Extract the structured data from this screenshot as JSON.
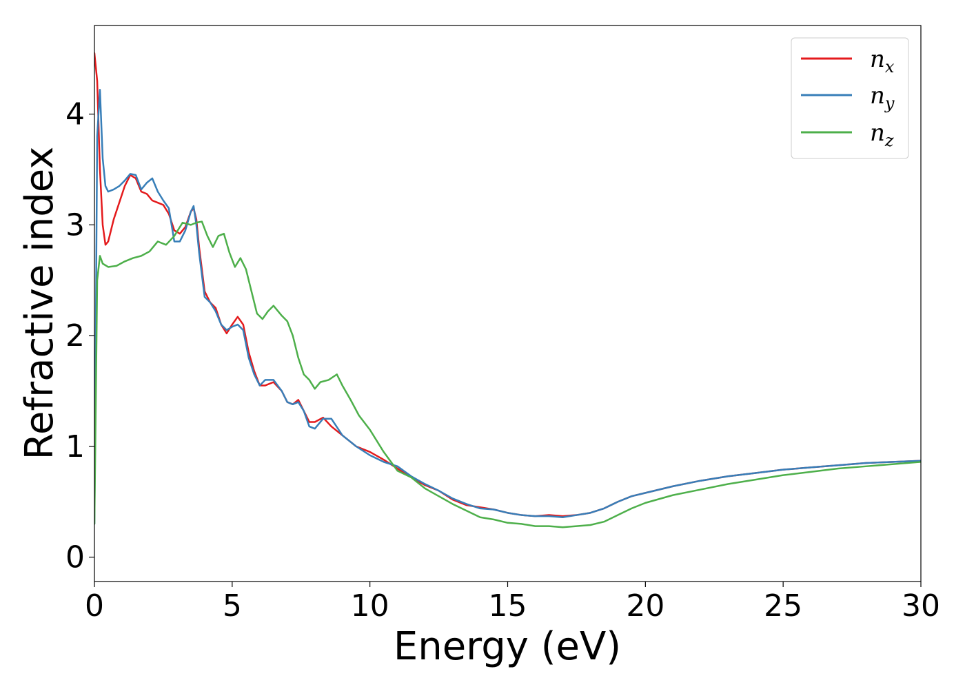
{
  "chart_data": {
    "type": "line",
    "xlabel": "Energy (eV)",
    "ylabel": "Refractive index",
    "xlim": [
      0,
      30
    ],
    "ylim": [
      -0.22,
      4.8
    ],
    "x_ticks": [
      0,
      5,
      10,
      15,
      20,
      25,
      30
    ],
    "y_ticks": [
      0,
      1,
      2,
      3,
      4
    ],
    "grid": false,
    "legend_position": "top-right",
    "series": [
      {
        "name": "n",
        "subscript": "x",
        "color": "#e41a1c",
        "x": [
          0,
          0.1,
          0.2,
          0.3,
          0.4,
          0.5,
          0.7,
          0.9,
          1.1,
          1.3,
          1.5,
          1.7,
          1.9,
          2.1,
          2.3,
          2.5,
          2.7,
          2.9,
          3.1,
          3.3,
          3.5,
          3.6,
          3.7,
          3.8,
          4.0,
          4.2,
          4.4,
          4.6,
          4.8,
          5.0,
          5.2,
          5.4,
          5.6,
          5.8,
          6.0,
          6.2,
          6.5,
          6.8,
          7.0,
          7.2,
          7.4,
          7.6,
          7.8,
          8.0,
          8.3,
          8.6,
          9.0,
          9.5,
          10.0,
          10.5,
          11.0,
          11.5,
          12.0,
          12.5,
          13.0,
          13.5,
          14.0,
          14.5,
          15.0,
          15.5,
          16.0,
          16.5,
          17.0,
          17.5,
          18.0,
          18.5,
          19.0,
          19.5,
          20.0,
          21.0,
          22.0,
          23.0,
          24.0,
          25.0,
          26.0,
          27.0,
          28.0,
          29.0,
          30.0
        ],
        "y": [
          4.55,
          4.3,
          3.5,
          3.0,
          2.82,
          2.85,
          3.05,
          3.2,
          3.35,
          3.45,
          3.42,
          3.3,
          3.28,
          3.22,
          3.2,
          3.18,
          3.1,
          2.95,
          2.92,
          2.98,
          3.12,
          3.15,
          3.05,
          2.8,
          2.4,
          2.3,
          2.25,
          2.1,
          2.02,
          2.1,
          2.17,
          2.1,
          1.85,
          1.68,
          1.55,
          1.55,
          1.58,
          1.5,
          1.4,
          1.38,
          1.42,
          1.32,
          1.22,
          1.22,
          1.26,
          1.18,
          1.1,
          1.0,
          0.95,
          0.88,
          0.8,
          0.72,
          0.65,
          0.6,
          0.52,
          0.47,
          0.45,
          0.43,
          0.4,
          0.38,
          0.37,
          0.38,
          0.37,
          0.38,
          0.4,
          0.44,
          0.5,
          0.55,
          0.58,
          0.64,
          0.69,
          0.73,
          0.76,
          0.79,
          0.81,
          0.83,
          0.85,
          0.86,
          0.87
        ]
      },
      {
        "name": "n",
        "subscript": "y",
        "color": "#377eb8",
        "x": [
          0,
          0.1,
          0.2,
          0.3,
          0.4,
          0.5,
          0.7,
          0.9,
          1.1,
          1.3,
          1.5,
          1.7,
          1.9,
          2.1,
          2.3,
          2.5,
          2.7,
          2.9,
          3.1,
          3.3,
          3.5,
          3.6,
          3.7,
          3.8,
          4.0,
          4.2,
          4.4,
          4.6,
          4.8,
          5.0,
          5.2,
          5.4,
          5.6,
          5.8,
          6.0,
          6.2,
          6.5,
          6.8,
          7.0,
          7.2,
          7.4,
          7.6,
          7.8,
          8.0,
          8.3,
          8.6,
          9.0,
          9.5,
          10.0,
          10.5,
          11.0,
          11.5,
          12.0,
          12.5,
          13.0,
          13.5,
          14.0,
          14.5,
          15.0,
          15.5,
          16.0,
          16.5,
          17.0,
          17.5,
          18.0,
          18.5,
          19.0,
          19.5,
          20.0,
          21.0,
          22.0,
          23.0,
          24.0,
          25.0,
          26.0,
          27.0,
          28.0,
          29.0,
          30.0
        ],
        "y": [
          0.3,
          3.8,
          4.22,
          3.6,
          3.35,
          3.3,
          3.32,
          3.35,
          3.4,
          3.46,
          3.45,
          3.32,
          3.38,
          3.42,
          3.3,
          3.22,
          3.15,
          2.85,
          2.85,
          2.95,
          3.12,
          3.17,
          3.0,
          2.75,
          2.35,
          2.3,
          2.22,
          2.1,
          2.05,
          2.08,
          2.1,
          2.05,
          1.8,
          1.65,
          1.55,
          1.6,
          1.6,
          1.5,
          1.4,
          1.38,
          1.4,
          1.32,
          1.18,
          1.16,
          1.25,
          1.25,
          1.1,
          1.0,
          0.92,
          0.86,
          0.82,
          0.73,
          0.66,
          0.6,
          0.53,
          0.48,
          0.44,
          0.43,
          0.4,
          0.38,
          0.37,
          0.37,
          0.36,
          0.38,
          0.4,
          0.44,
          0.5,
          0.55,
          0.58,
          0.64,
          0.69,
          0.73,
          0.76,
          0.79,
          0.81,
          0.83,
          0.85,
          0.86,
          0.87
        ]
      },
      {
        "name": "n",
        "subscript": "z",
        "color": "#4daf4a",
        "x": [
          0,
          0.1,
          0.2,
          0.3,
          0.5,
          0.8,
          1.1,
          1.4,
          1.7,
          2.0,
          2.3,
          2.6,
          2.9,
          3.2,
          3.5,
          3.7,
          3.9,
          4.1,
          4.3,
          4.5,
          4.7,
          4.9,
          5.1,
          5.3,
          5.5,
          5.7,
          5.9,
          6.1,
          6.3,
          6.5,
          6.8,
          7.0,
          7.2,
          7.4,
          7.6,
          7.8,
          8.0,
          8.2,
          8.5,
          8.8,
          9.0,
          9.3,
          9.6,
          10.0,
          10.5,
          11.0,
          11.5,
          12.0,
          12.5,
          13.0,
          13.5,
          14.0,
          14.5,
          15.0,
          15.5,
          16.0,
          16.5,
          17.0,
          17.5,
          18.0,
          18.5,
          19.0,
          19.5,
          20.0,
          21.0,
          22.0,
          23.0,
          24.0,
          25.0,
          26.0,
          27.0,
          28.0,
          29.0,
          30.0
        ],
        "y": [
          0.3,
          2.5,
          2.72,
          2.65,
          2.62,
          2.63,
          2.67,
          2.7,
          2.72,
          2.76,
          2.85,
          2.82,
          2.9,
          3.02,
          3.0,
          3.02,
          3.03,
          2.9,
          2.8,
          2.9,
          2.92,
          2.75,
          2.62,
          2.7,
          2.6,
          2.4,
          2.2,
          2.15,
          2.22,
          2.27,
          2.18,
          2.13,
          2.0,
          1.8,
          1.65,
          1.6,
          1.52,
          1.58,
          1.6,
          1.65,
          1.55,
          1.42,
          1.28,
          1.15,
          0.95,
          0.78,
          0.72,
          0.62,
          0.55,
          0.48,
          0.42,
          0.36,
          0.34,
          0.31,
          0.3,
          0.28,
          0.28,
          0.27,
          0.28,
          0.29,
          0.32,
          0.38,
          0.44,
          0.49,
          0.56,
          0.61,
          0.66,
          0.7,
          0.74,
          0.77,
          0.8,
          0.82,
          0.84,
          0.86
        ]
      }
    ]
  }
}
